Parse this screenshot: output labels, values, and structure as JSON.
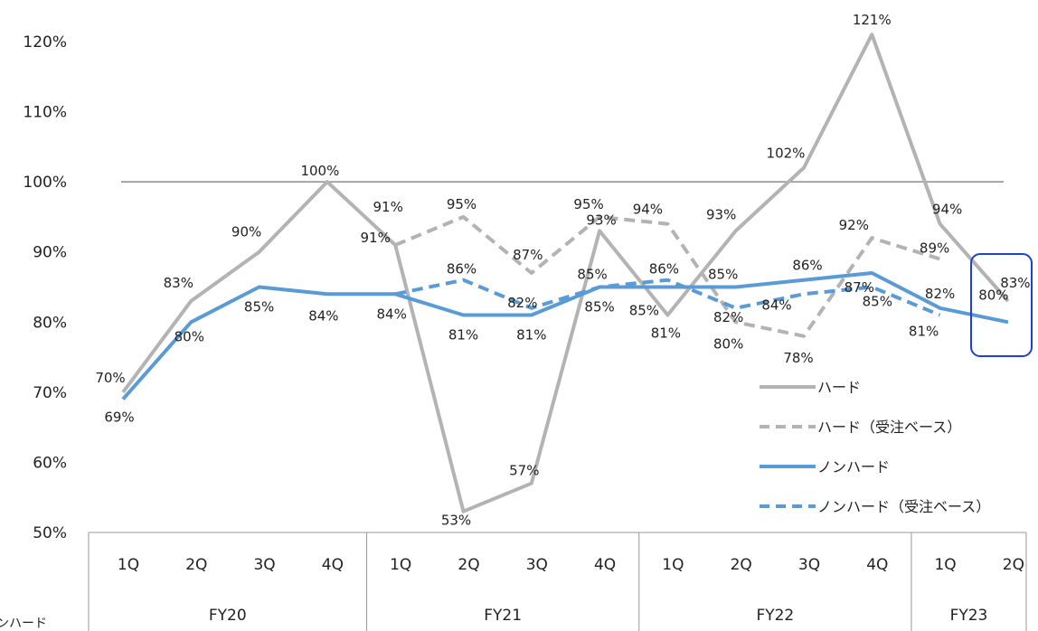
{
  "chart_data": {
    "type": "line",
    "y_ticks": [
      "50%",
      "60%",
      "70%",
      "80%",
      "90%",
      "100%",
      "110%",
      "120%"
    ],
    "ylim": [
      50,
      122
    ],
    "reference_line": 100,
    "categories": [
      "1Q",
      "2Q",
      "3Q",
      "4Q",
      "1Q",
      "2Q",
      "3Q",
      "4Q",
      "1Q",
      "2Q",
      "3Q",
      "4Q",
      "1Q",
      "2Q"
    ],
    "groups": [
      {
        "label": "FY20",
        "span": 4
      },
      {
        "label": "FY21",
        "span": 4
      },
      {
        "label": "FY22",
        "span": 4
      },
      {
        "label": "FY23",
        "span": 2
      }
    ],
    "series": [
      {
        "name": "ハード",
        "color": "#b3b3b3",
        "dash": false,
        "values": [
          70,
          83,
          90,
          100,
          91,
          53,
          57,
          93,
          81,
          93,
          102,
          121,
          94,
          83
        ],
        "labels": [
          "70%",
          "83%",
          "90%",
          "100%",
          "91%",
          "53%",
          "57%",
          "93%",
          "81%",
          "93%",
          "102%",
          "121%",
          "94%",
          "83%"
        ]
      },
      {
        "name": "ハード（受注ベース）",
        "color": "#b3b3b3",
        "dash": true,
        "values": [
          null,
          null,
          null,
          null,
          91,
          95,
          87,
          95,
          94,
          80,
          78,
          92,
          89,
          null
        ],
        "labels": [
          null,
          null,
          null,
          null,
          "91%",
          "95%",
          "87%",
          "95%",
          "94%",
          "80%",
          "78%",
          "92%",
          "89%",
          null
        ]
      },
      {
        "name": "ノンハード",
        "color": "#5b9bd5",
        "dash": false,
        "values": [
          69,
          80,
          85,
          84,
          84,
          81,
          81,
          85,
          85,
          85,
          86,
          87,
          82,
          80
        ],
        "labels": [
          "69%",
          "80%",
          "85%",
          "84%",
          "84%",
          "81%",
          "81%",
          "85%",
          "85%",
          "85%",
          "86%",
          "87%",
          "82%",
          "80%"
        ]
      },
      {
        "name": "ノンハード（受注ベース）",
        "color": "#5b9bd5",
        "dash": true,
        "values": [
          null,
          null,
          null,
          null,
          84,
          86,
          82,
          85,
          86,
          82,
          84,
          85,
          81,
          null
        ],
        "labels": [
          null,
          null,
          null,
          null,
          null,
          "86%",
          "82%",
          "85%",
          "86%",
          "82%",
          "84%",
          "85%",
          "81%",
          null
        ]
      }
    ],
    "legend_position": "right",
    "highlight_box_color": "#1f3fd6"
  },
  "cut_text": "ンハード"
}
